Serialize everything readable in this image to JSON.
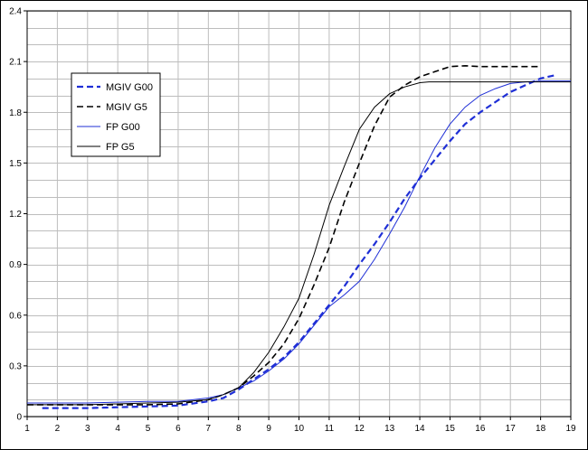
{
  "chart_data": {
    "type": "line",
    "title": "",
    "xlabel": "",
    "ylabel": "",
    "xlim": [
      1,
      19
    ],
    "ylim": [
      0,
      2.4
    ],
    "x_ticks": [
      1,
      2,
      3,
      4,
      5,
      6,
      7,
      8,
      9,
      10,
      11,
      12,
      13,
      14,
      15,
      16,
      17,
      18,
      19
    ],
    "y_ticks": [
      "0",
      "0.3",
      "0.6",
      "0.9",
      "1.2",
      "1.5",
      "1.8",
      "2.1",
      "2.4"
    ],
    "grid": true,
    "legend_position": "top-left",
    "series": [
      {
        "name": "MGIV G00",
        "color": "#1f2fd6",
        "style": "dashed",
        "points": [
          [
            1.5,
            0.05
          ],
          [
            2,
            0.05
          ],
          [
            3,
            0.05
          ],
          [
            4,
            0.055
          ],
          [
            5,
            0.06
          ],
          [
            6,
            0.065
          ],
          [
            7,
            0.09
          ],
          [
            7.5,
            0.11
          ],
          [
            8,
            0.16
          ],
          [
            8.5,
            0.22
          ],
          [
            9,
            0.28
          ],
          [
            9.5,
            0.35
          ],
          [
            10,
            0.44
          ],
          [
            10.5,
            0.55
          ],
          [
            11,
            0.66
          ],
          [
            11.5,
            0.77
          ],
          [
            12,
            0.9
          ],
          [
            12.5,
            1.02
          ],
          [
            13,
            1.15
          ],
          [
            13.5,
            1.29
          ],
          [
            14,
            1.41
          ],
          [
            14.5,
            1.52
          ],
          [
            15,
            1.63
          ],
          [
            15.5,
            1.73
          ],
          [
            16,
            1.8
          ],
          [
            16.5,
            1.86
          ],
          [
            17,
            1.92
          ],
          [
            17.5,
            1.96
          ],
          [
            18,
            2.0
          ],
          [
            18.5,
            2.02
          ]
        ]
      },
      {
        "name": "MGIV G5",
        "color": "#000000",
        "style": "dashed",
        "points": [
          [
            1,
            0.07
          ],
          [
            2,
            0.07
          ],
          [
            3,
            0.07
          ],
          [
            4,
            0.07
          ],
          [
            5,
            0.07
          ],
          [
            6,
            0.075
          ],
          [
            7,
            0.1
          ],
          [
            7.5,
            0.13
          ],
          [
            8,
            0.17
          ],
          [
            8.5,
            0.24
          ],
          [
            9,
            0.32
          ],
          [
            9.5,
            0.43
          ],
          [
            10,
            0.58
          ],
          [
            10.5,
            0.78
          ],
          [
            11,
            1.0
          ],
          [
            11.5,
            1.27
          ],
          [
            12,
            1.5
          ],
          [
            12.5,
            1.72
          ],
          [
            13,
            1.89
          ],
          [
            13.5,
            1.96
          ],
          [
            14,
            2.01
          ],
          [
            14.5,
            2.04
          ],
          [
            15,
            2.07
          ],
          [
            15.5,
            2.075
          ],
          [
            16,
            2.07
          ],
          [
            17,
            2.07
          ],
          [
            18,
            2.07
          ]
        ]
      },
      {
        "name": "FP G00",
        "color": "#1f2fd6",
        "style": "solid",
        "points": [
          [
            1,
            0.08
          ],
          [
            2,
            0.08
          ],
          [
            3,
            0.08
          ],
          [
            4,
            0.085
          ],
          [
            5,
            0.09
          ],
          [
            6,
            0.09
          ],
          [
            7,
            0.11
          ],
          [
            7.5,
            0.13
          ],
          [
            8,
            0.17
          ],
          [
            8.5,
            0.21
          ],
          [
            9,
            0.27
          ],
          [
            9.5,
            0.34
          ],
          [
            10,
            0.43
          ],
          [
            10.5,
            0.54
          ],
          [
            11,
            0.65
          ],
          [
            11.5,
            0.72
          ],
          [
            12,
            0.8
          ],
          [
            12.5,
            0.93
          ],
          [
            13,
            1.08
          ],
          [
            13.5,
            1.24
          ],
          [
            14,
            1.42
          ],
          [
            14.5,
            1.59
          ],
          [
            15,
            1.73
          ],
          [
            15.5,
            1.83
          ],
          [
            16,
            1.9
          ],
          [
            16.5,
            1.94
          ],
          [
            17,
            1.97
          ],
          [
            17.5,
            1.98
          ],
          [
            18,
            1.985
          ],
          [
            19,
            1.985
          ]
        ]
      },
      {
        "name": "FP G5",
        "color": "#000000",
        "style": "solid",
        "points": [
          [
            1,
            0.07
          ],
          [
            2,
            0.07
          ],
          [
            3,
            0.07
          ],
          [
            4,
            0.075
          ],
          [
            5,
            0.08
          ],
          [
            6,
            0.085
          ],
          [
            7,
            0.1
          ],
          [
            7.5,
            0.13
          ],
          [
            8,
            0.17
          ],
          [
            8.5,
            0.26
          ],
          [
            9,
            0.38
          ],
          [
            9.5,
            0.53
          ],
          [
            10,
            0.7
          ],
          [
            10.5,
            0.96
          ],
          [
            11,
            1.25
          ],
          [
            11.5,
            1.48
          ],
          [
            12,
            1.7
          ],
          [
            12.5,
            1.83
          ],
          [
            13,
            1.91
          ],
          [
            13.5,
            1.95
          ],
          [
            14,
            1.975
          ],
          [
            14.3,
            1.98
          ],
          [
            15,
            1.98
          ],
          [
            16,
            1.98
          ],
          [
            17,
            1.98
          ],
          [
            18,
            1.98
          ],
          [
            19,
            1.98
          ]
        ]
      }
    ]
  }
}
